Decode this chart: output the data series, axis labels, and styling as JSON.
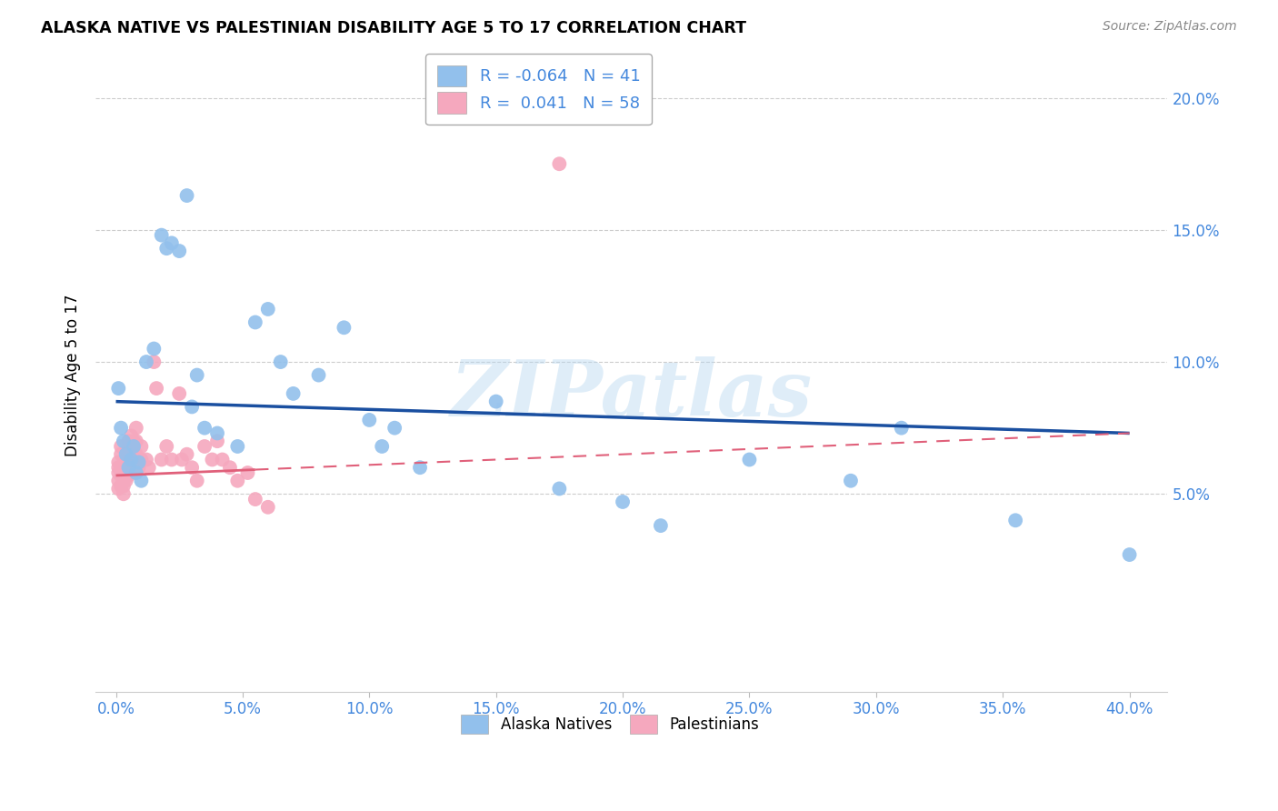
{
  "title": "ALASKA NATIVE VS PALESTINIAN DISABILITY AGE 5 TO 17 CORRELATION CHART",
  "source": "Source: ZipAtlas.com",
  "ylabel": "Disability Age 5 to 17",
  "xtick_vals": [
    0.0,
    0.05,
    0.1,
    0.15,
    0.2,
    0.25,
    0.3,
    0.35,
    0.4
  ],
  "xtick_labels": [
    "0.0%",
    "5.0%",
    "10.0%",
    "15.0%",
    "20.0%",
    "25.0%",
    "30.0%",
    "35.0%",
    "40.0%"
  ],
  "ytick_vals": [
    0.05,
    0.1,
    0.15,
    0.2
  ],
  "ytick_labels": [
    "5.0%",
    "10.0%",
    "15.0%",
    "20.0%"
  ],
  "xlim": [
    -0.008,
    0.415
  ],
  "ylim": [
    -0.025,
    0.215
  ],
  "alaska_color": "#92C0EC",
  "palestinian_color": "#F5A8BE",
  "alaska_R": -0.064,
  "alaska_N": 41,
  "palestinian_R": 0.041,
  "palestinian_N": 58,
  "line_blue": "#1A4FA0",
  "line_pink": "#E0607A",
  "watermark": "ZIPatlas",
  "alaska_x": [
    0.001,
    0.002,
    0.003,
    0.004,
    0.005,
    0.006,
    0.007,
    0.008,
    0.009,
    0.01,
    0.012,
    0.015,
    0.018,
    0.02,
    0.022,
    0.025,
    0.028,
    0.03,
    0.032,
    0.035,
    0.04,
    0.048,
    0.055,
    0.06,
    0.065,
    0.07,
    0.08,
    0.09,
    0.1,
    0.105,
    0.11,
    0.12,
    0.15,
    0.175,
    0.2,
    0.215,
    0.25,
    0.29,
    0.31,
    0.355,
    0.4
  ],
  "alaska_y": [
    0.09,
    0.075,
    0.07,
    0.065,
    0.06,
    0.063,
    0.068,
    0.058,
    0.062,
    0.055,
    0.1,
    0.105,
    0.148,
    0.143,
    0.145,
    0.142,
    0.163,
    0.083,
    0.095,
    0.075,
    0.073,
    0.068,
    0.115,
    0.12,
    0.1,
    0.088,
    0.095,
    0.113,
    0.078,
    0.068,
    0.075,
    0.06,
    0.085,
    0.052,
    0.047,
    0.038,
    0.063,
    0.055,
    0.075,
    0.04,
    0.027
  ],
  "palest_x": [
    0.001,
    0.001,
    0.001,
    0.001,
    0.001,
    0.002,
    0.002,
    0.002,
    0.002,
    0.002,
    0.003,
    0.003,
    0.003,
    0.003,
    0.003,
    0.004,
    0.004,
    0.004,
    0.004,
    0.005,
    0.005,
    0.005,
    0.005,
    0.005,
    0.006,
    0.006,
    0.006,
    0.007,
    0.007,
    0.007,
    0.008,
    0.008,
    0.008,
    0.009,
    0.01,
    0.01,
    0.012,
    0.013,
    0.015,
    0.016,
    0.018,
    0.02,
    0.022,
    0.025,
    0.026,
    0.028,
    0.03,
    0.032,
    0.035,
    0.038,
    0.04,
    0.042,
    0.045,
    0.048,
    0.052,
    0.055,
    0.06,
    0.175
  ],
  "palest_y": [
    0.062,
    0.06,
    0.058,
    0.055,
    0.052,
    0.068,
    0.065,
    0.06,
    0.057,
    0.053,
    0.06,
    0.058,
    0.055,
    0.053,
    0.05,
    0.063,
    0.06,
    0.058,
    0.055,
    0.07,
    0.068,
    0.065,
    0.06,
    0.057,
    0.072,
    0.068,
    0.063,
    0.07,
    0.067,
    0.062,
    0.075,
    0.07,
    0.065,
    0.06,
    0.068,
    0.063,
    0.063,
    0.06,
    0.1,
    0.09,
    0.063,
    0.068,
    0.063,
    0.088,
    0.063,
    0.065,
    0.06,
    0.055,
    0.068,
    0.063,
    0.07,
    0.063,
    0.06,
    0.055,
    0.058,
    0.048,
    0.045,
    0.175
  ],
  "alaska_line_x": [
    0.0,
    0.4
  ],
  "alaska_line_y": [
    0.085,
    0.073
  ],
  "palest_line_x": [
    0.0,
    0.4
  ],
  "palest_line_y_solid_end": 0.055,
  "palest_line_y": [
    0.057,
    0.073
  ]
}
